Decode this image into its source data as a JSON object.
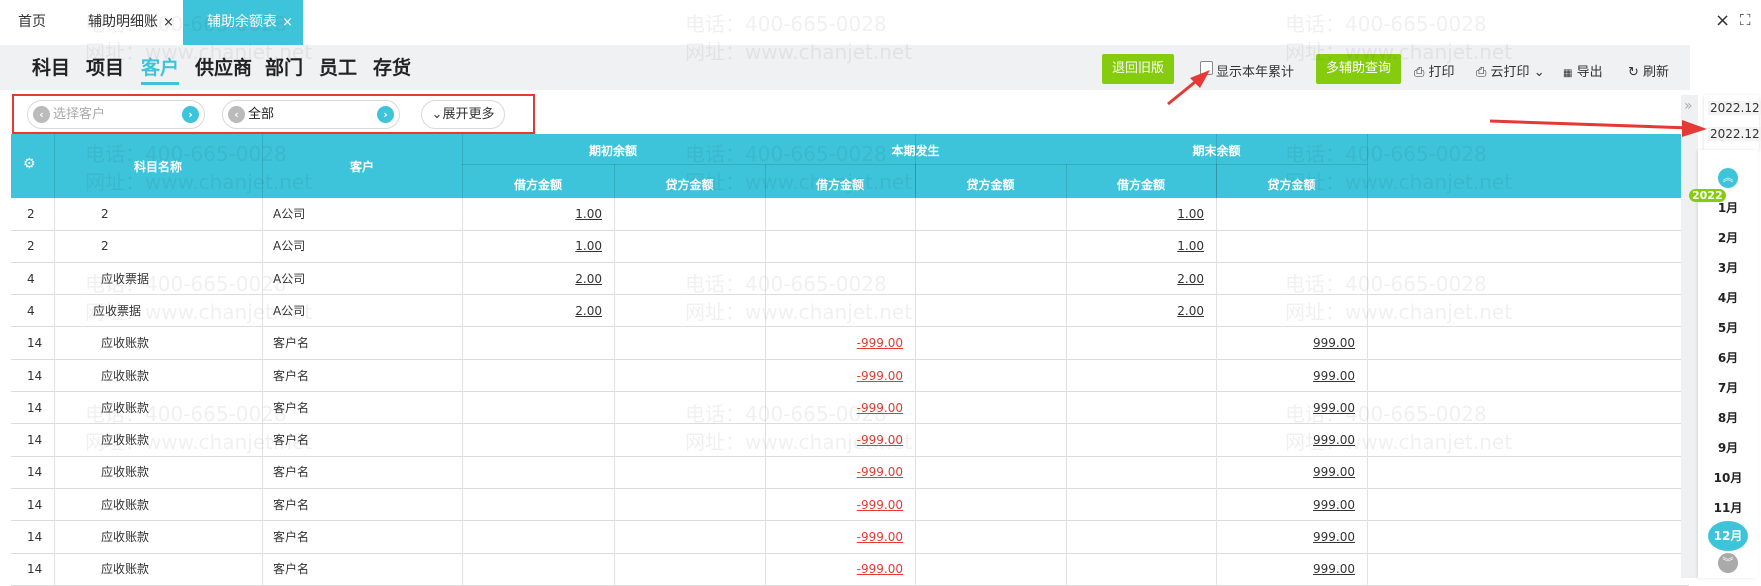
{
  "tabs": [
    {
      "label": "首页"
    },
    {
      "label": "辅助明细账",
      "close": "×"
    },
    {
      "label": "辅助余额表",
      "close": "×",
      "active": true
    }
  ],
  "window": {
    "close": "×",
    "fullscreen": "⛶"
  },
  "nav_tabs": [
    {
      "label": "科目"
    },
    {
      "label": "项目"
    },
    {
      "label": "客户",
      "active": true
    },
    {
      "label": "供应商"
    },
    {
      "label": "部门"
    },
    {
      "label": "员工"
    },
    {
      "label": "存货"
    }
  ],
  "toolbar": {
    "revert": "退回旧版",
    "show_year": "显示本年累计",
    "show_year_checked": false,
    "multi_query": "多辅助查询",
    "print": "打印",
    "cloud_print": "云打印",
    "export": "导出",
    "refresh": "刷新"
  },
  "filters": {
    "customer_placeholder": "选择客户",
    "scope_value": "全部",
    "expand": "展开更多"
  },
  "table": {
    "headers": {
      "subject": "科目名称",
      "customer": "客户",
      "opening": "期初余额",
      "current": "本期发生",
      "closing": "期末余额",
      "debit": "借方金额",
      "credit": "贷方金额"
    },
    "rows": [
      {
        "code": "2",
        "subject": "2",
        "customer": "A公司",
        "open_debit": "1.00",
        "open_credit": "",
        "cur_debit": "",
        "cur_credit": "",
        "close_debit": "1.00",
        "close_credit": ""
      },
      {
        "code": "2",
        "subject": "2",
        "customer": "A公司",
        "open_debit": "1.00",
        "open_credit": "",
        "cur_debit": "",
        "cur_credit": "",
        "close_debit": "1.00",
        "close_credit": ""
      },
      {
        "code": "4",
        "subject": "应收票据",
        "customer": "A公司",
        "open_debit": "2.00",
        "open_credit": "",
        "cur_debit": "",
        "cur_credit": "",
        "close_debit": "2.00",
        "close_credit": ""
      },
      {
        "code": "4",
        "subject": "应收票据",
        "customer": "A公司",
        "open_debit": "2.00",
        "open_credit": "",
        "cur_debit": "",
        "cur_credit": "",
        "close_debit": "2.00",
        "close_credit": ""
      },
      {
        "code": "14",
        "subject": "应收账款",
        "customer": "客户名",
        "open_debit": "",
        "open_credit": "",
        "cur_debit": "-999.00",
        "cur_credit": "",
        "close_debit": "",
        "close_credit": "999.00"
      },
      {
        "code": "14",
        "subject": "应收账款",
        "customer": "客户名",
        "open_debit": "",
        "open_credit": "",
        "cur_debit": "-999.00",
        "cur_credit": "",
        "close_debit": "",
        "close_credit": "999.00"
      },
      {
        "code": "14",
        "subject": "应收账款",
        "customer": "客户名",
        "open_debit": "",
        "open_credit": "",
        "cur_debit": "-999.00",
        "cur_credit": "",
        "close_debit": "",
        "close_credit": "999.00"
      },
      {
        "code": "14",
        "subject": "应收账款",
        "customer": "客户名",
        "open_debit": "",
        "open_credit": "",
        "cur_debit": "-999.00",
        "cur_credit": "",
        "close_debit": "",
        "close_credit": "999.00"
      },
      {
        "code": "14",
        "subject": "应收账款",
        "customer": "客户名",
        "open_debit": "",
        "open_credit": "",
        "cur_debit": "-999.00",
        "cur_credit": "",
        "close_debit": "",
        "close_credit": "999.00"
      },
      {
        "code": "14",
        "subject": "应收账款",
        "customer": "客户名",
        "open_debit": "",
        "open_credit": "",
        "cur_debit": "-999.00",
        "cur_credit": "",
        "close_debit": "",
        "close_credit": "999.00"
      },
      {
        "code": "14",
        "subject": "应收账款",
        "customer": "客户名",
        "open_debit": "",
        "open_credit": "",
        "cur_debit": "-999.00",
        "cur_credit": "",
        "close_debit": "",
        "close_credit": "999.00"
      },
      {
        "code": "14",
        "subject": "应收账款",
        "customer": "客户名",
        "open_debit": "",
        "open_credit": "",
        "cur_debit": "-999.00",
        "cur_credit": "",
        "close_debit": "",
        "close_credit": "999.00"
      }
    ]
  },
  "period": {
    "collapse": "»",
    "start": "2022.12",
    "end": "2022.12",
    "year": "2022",
    "months": [
      "1月",
      "2月",
      "3月",
      "4月",
      "5月",
      "6月",
      "7月",
      "8月",
      "9月",
      "10月",
      "11月",
      "12月"
    ],
    "selected": "12月"
  },
  "watermark": {
    "phone": "电话：400-665-0028",
    "site": "网址：www.chanjet.net"
  },
  "colors": {
    "accent": "#3ec4da",
    "green": "#86cc0e",
    "negative": "#e53935",
    "annotation": "#e53935"
  }
}
